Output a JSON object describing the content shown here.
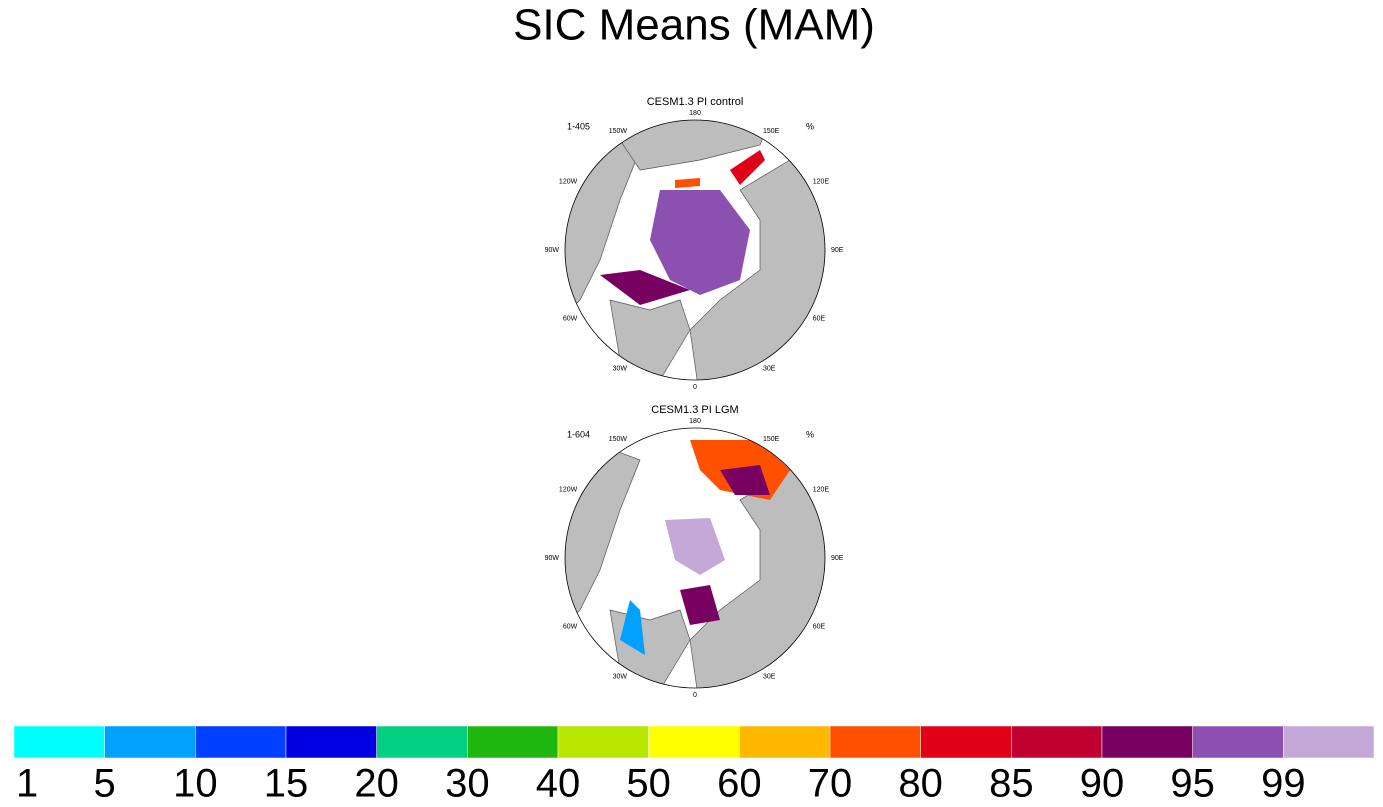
{
  "title": "SIC Means (MAM)",
  "panels": [
    {
      "title": "CESM1.3 PI control",
      "left_label": "1-405",
      "right_label": "%"
    },
    {
      "title": "CESM1.3 PI LGM",
      "left_label": "1-604",
      "right_label": "%"
    }
  ],
  "lon_labels": [
    "0",
    "30E",
    "60E",
    "90E",
    "120E",
    "150E",
    "180",
    "150W",
    "120W",
    "90W",
    "60W",
    "30W"
  ],
  "colorbar": {
    "levels": [
      1,
      5,
      10,
      15,
      20,
      30,
      40,
      50,
      60,
      70,
      80,
      85,
      90,
      95,
      99
    ],
    "colors": [
      "#00ffff",
      "#00a0ff",
      "#0040ff",
      "#0000e0",
      "#00d080",
      "#20b810",
      "#b8e800",
      "#ffff00",
      "#ffb800",
      "#ff5000",
      "#e00018",
      "#c00030",
      "#780060",
      "#8c50b0",
      "#c4a8d8"
    ]
  }
}
